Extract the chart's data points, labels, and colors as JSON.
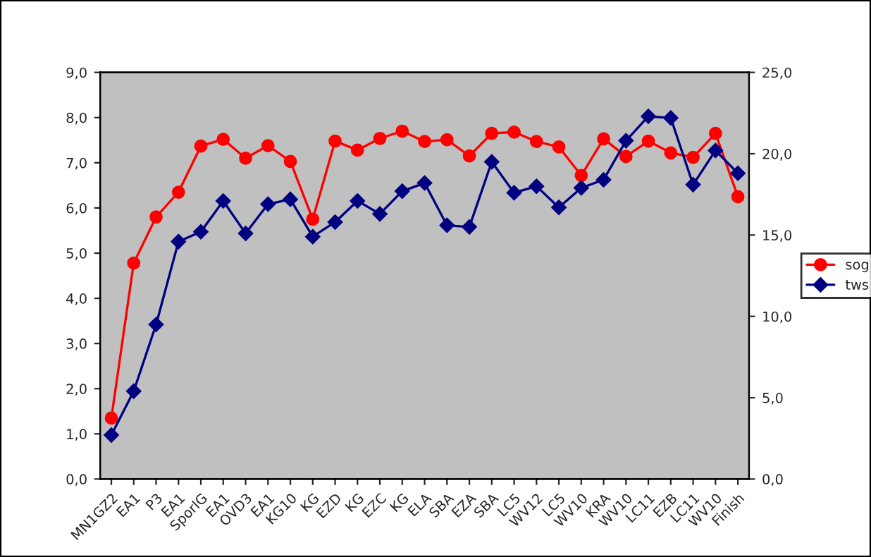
{
  "chart_data": {
    "type": "line",
    "categories": [
      "MN1GZ2",
      "EA1",
      "P3",
      "EA1",
      "SporIG",
      "EA1",
      "OVD3",
      "EA1",
      "KG10",
      "KG",
      "EZD",
      "KG",
      "EZC",
      "KG",
      "ELA",
      "SBA",
      "EZA",
      "SBA",
      "LC5",
      "WV12",
      "LC5",
      "WV10",
      "KRA",
      "WV10",
      "LC11",
      "EZB",
      "LC11",
      "WV10",
      "Finish"
    ],
    "series": [
      {
        "name": "sog",
        "color": "#ff0000",
        "marker": "circle",
        "values": [
          1.35,
          4.78,
          5.8,
          6.35,
          7.37,
          7.52,
          7.1,
          7.38,
          7.03,
          5.75,
          7.48,
          7.28,
          7.54,
          7.7,
          7.47,
          7.51,
          7.15,
          7.65,
          7.68,
          7.47,
          7.35,
          6.72,
          7.53,
          7.14,
          7.48,
          7.22,
          7.12,
          7.65,
          6.25
        ]
      },
      {
        "name": "tws",
        "color": "#000080",
        "marker": "diamond",
        "axis": "y2",
        "values": [
          2.7,
          5.4,
          9.5,
          14.6,
          15.2,
          17.1,
          15.1,
          16.9,
          17.2,
          14.9,
          15.8,
          17.1,
          16.3,
          17.7,
          18.2,
          15.6,
          15.5,
          19.5,
          17.6,
          18.0,
          16.7,
          17.9,
          18.4,
          20.8,
          22.3,
          22.2,
          18.1,
          20.2,
          18.8
        ]
      }
    ],
    "ylim": [
      0,
      9
    ],
    "yticks": [
      {
        "value": 0,
        "label": "0,0"
      },
      {
        "value": 1,
        "label": "1,0"
      },
      {
        "value": 2,
        "label": "2,0"
      },
      {
        "value": 3,
        "label": "3,0"
      },
      {
        "value": 4,
        "label": "4,0"
      },
      {
        "value": 5,
        "label": "5,0"
      },
      {
        "value": 6,
        "label": "6,0"
      },
      {
        "value": 7,
        "label": "7,0"
      },
      {
        "value": 8,
        "label": "8,0"
      },
      {
        "value": 9,
        "label": "9,0"
      }
    ],
    "y2lim": [
      0,
      25
    ],
    "y2ticks": [
      {
        "value": 0,
        "label": "0,0"
      },
      {
        "value": 5,
        "label": "5,0"
      },
      {
        "value": 10,
        "label": "10,0"
      },
      {
        "value": 15,
        "label": "15,0"
      },
      {
        "value": 20,
        "label": "20,0"
      },
      {
        "value": 25,
        "label": "25,0"
      }
    ],
    "grid": false,
    "legend": "right"
  }
}
